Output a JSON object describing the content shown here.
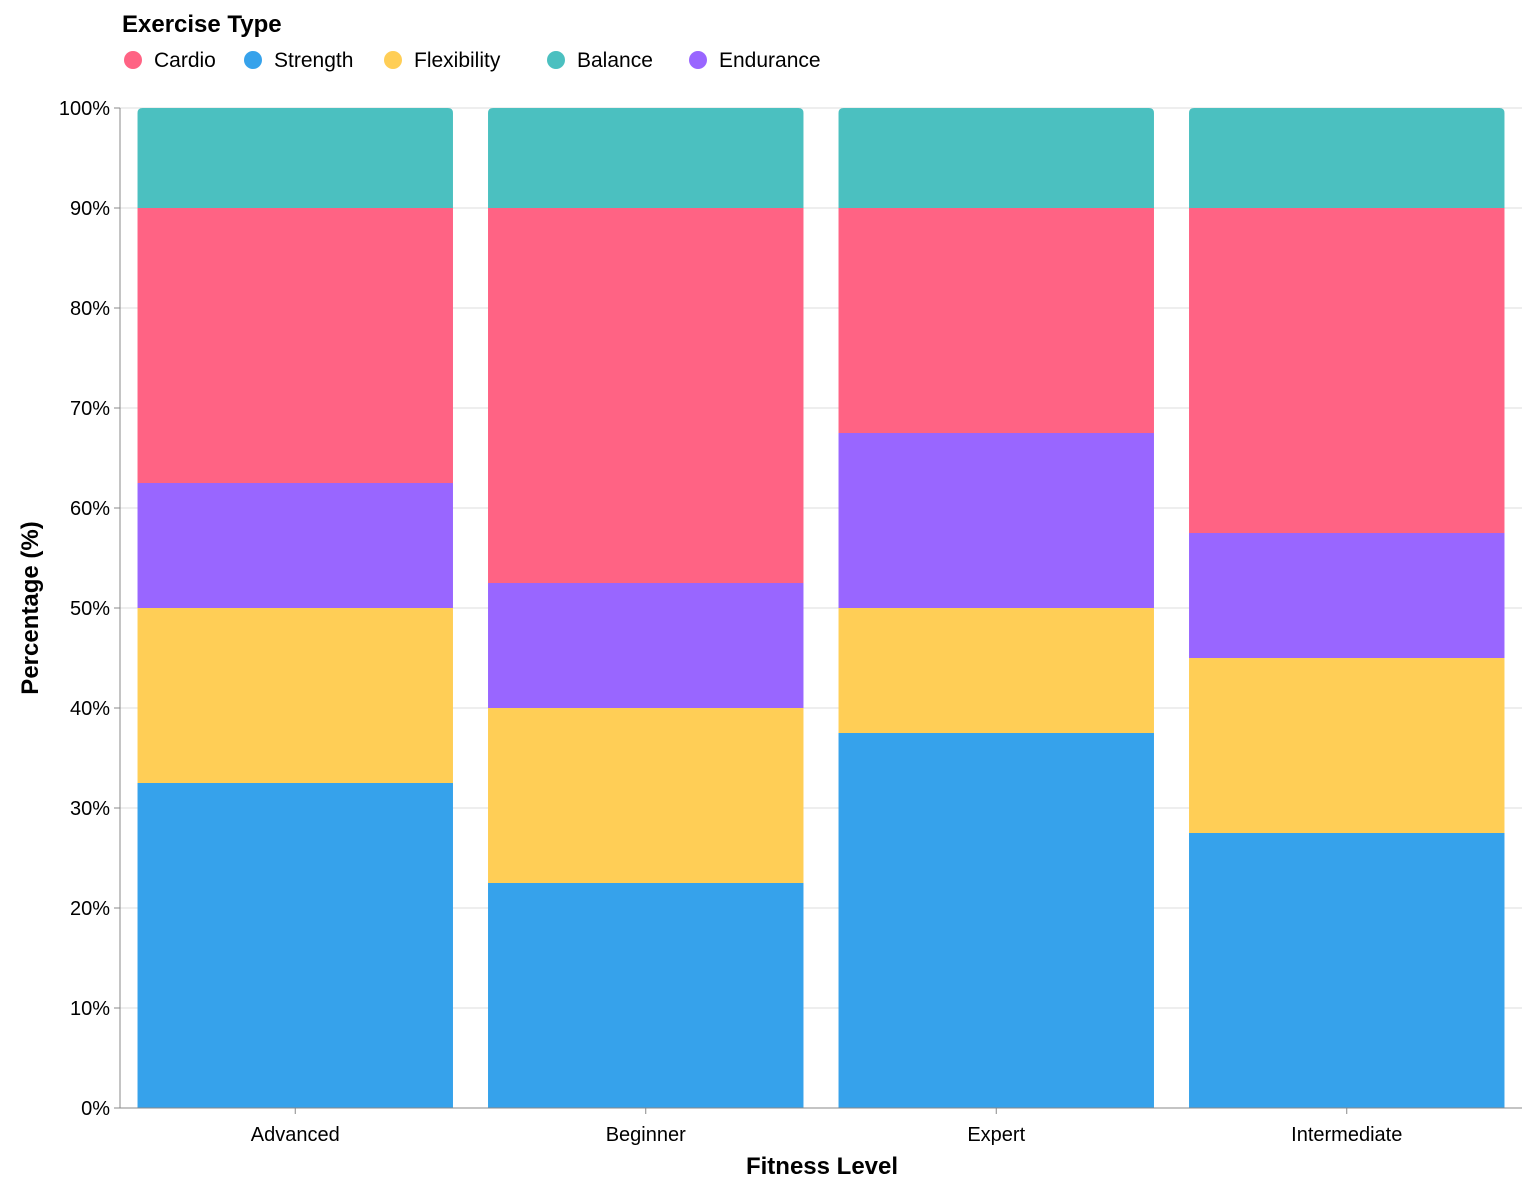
{
  "chart_data": {
    "type": "bar",
    "stacked": true,
    "normalized": true,
    "categories": [
      "Advanced",
      "Beginner",
      "Expert",
      "Intermediate"
    ],
    "stack_order": [
      "Strength",
      "Flexibility",
      "Endurance",
      "Cardio",
      "Balance"
    ],
    "series": [
      {
        "name": "Cardio",
        "color": "#FF6384",
        "values": [
          27.5,
          37.5,
          22.5,
          32.5
        ]
      },
      {
        "name": "Strength",
        "color": "#36A2EB",
        "values": [
          32.5,
          22.5,
          37.5,
          27.5
        ]
      },
      {
        "name": "Flexibility",
        "color": "#FFCE56",
        "values": [
          17.5,
          17.5,
          12.5,
          17.5
        ]
      },
      {
        "name": "Balance",
        "color": "#4BC0C0",
        "values": [
          10,
          10,
          10,
          10
        ]
      },
      {
        "name": "Endurance",
        "color": "#9966FF",
        "values": [
          12.5,
          12.5,
          17.5,
          12.5
        ]
      }
    ],
    "xlabel": "Fitness Level",
    "ylabel": "Percentage (%)",
    "ylim": [
      0,
      100
    ],
    "yticks": [
      "0%",
      "10%",
      "20%",
      "30%",
      "40%",
      "50%",
      "60%",
      "70%",
      "80%",
      "90%",
      "100%"
    ],
    "grid": true,
    "legend": {
      "title": "Exercise Type",
      "position": "top-left",
      "order": [
        "Cardio",
        "Strength",
        "Flexibility",
        "Balance",
        "Endurance"
      ]
    }
  }
}
